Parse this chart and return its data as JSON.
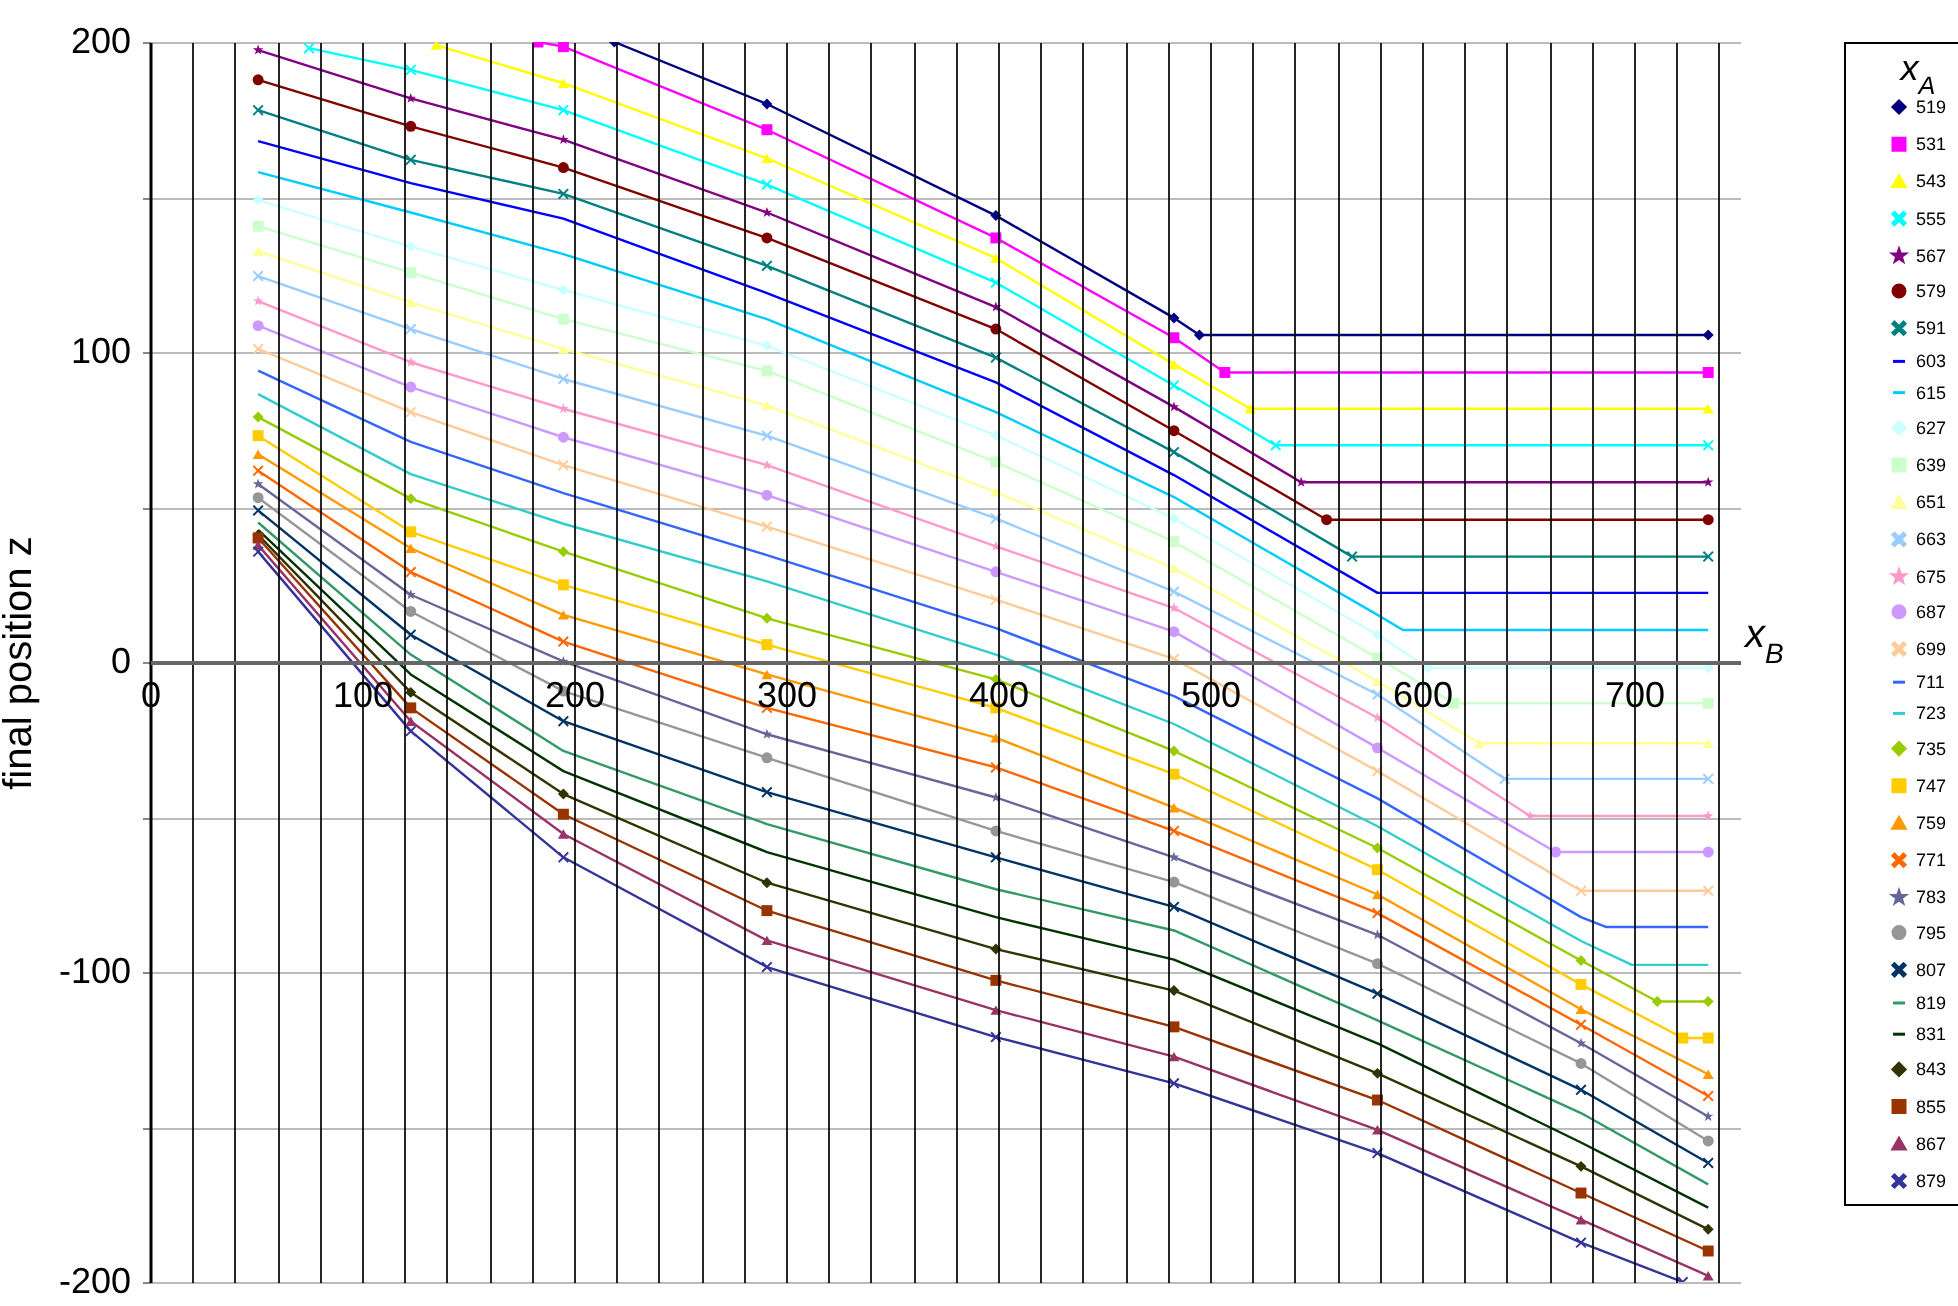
{
  "chart_data": {
    "type": "line",
    "xlabel": "x$_{B}$",
    "ylabel": "final position z",
    "legend_title": "x$_{A}$",
    "xlim": [
      0,
      750
    ],
    "xticks": [
      0,
      {
        "value": 20,
        "label": null
      },
      {
        "value": 40,
        "label": null
      },
      {
        "value": 60,
        "label": null
      },
      {
        "value": 80,
        "label": null
      },
      100,
      {
        "value": 120,
        "label": null
      },
      {
        "value": 140,
        "label": null
      },
      {
        "value": 160,
        "label": null
      },
      {
        "value": 180,
        "label": null
      },
      200,
      {
        "value": 220,
        "label": null
      },
      {
        "value": 240,
        "label": null
      },
      {
        "value": 260,
        "label": null
      },
      {
        "value": 280,
        "label": null
      },
      300,
      {
        "value": 320,
        "label": null
      },
      {
        "value": 340,
        "label": null
      },
      {
        "value": 360,
        "label": null
      },
      {
        "value": 380,
        "label": null
      },
      400,
      {
        "value": 420,
        "label": null
      },
      {
        "value": 440,
        "label": null
      },
      {
        "value": 460,
        "label": null
      },
      {
        "value": 480,
        "label": null
      },
      500,
      {
        "value": 520,
        "label": null
      },
      {
        "value": 540,
        "label": null
      },
      {
        "value": 560,
        "label": null
      },
      {
        "value": 580,
        "label": null
      },
      600,
      {
        "value": 620,
        "label": null
      },
      {
        "value": 640,
        "label": null
      },
      {
        "value": 660,
        "label": null
      },
      {
        "value": 680,
        "label": null
      },
      700,
      {
        "value": 720,
        "label": null
      },
      {
        "value": 740,
        "label": null
      }
    ],
    "ylim": [
      -200,
      200
    ],
    "yticks": [
      -200,
      {
        "value": -150,
        "label": null
      },
      -100,
      {
        "value": -50,
        "label": null
      },
      0,
      {
        "value": 50,
        "label": null
      },
      100,
      {
        "value": 150,
        "label": null
      },
      200
    ],
    "grid": true,
    "legend": "right",
    "series": [
      {
        "name": "519",
        "color": "#000080",
        "marker": "diamond",
        "x": [
          219,
          291,
          399,
          483,
          495,
          735
        ],
        "values": [
          200,
          180,
          144,
          111,
          105.5,
          105.5
        ]
      },
      {
        "name": "531",
        "color": "#ff00ff",
        "marker": "square",
        "x": [
          183,
          195,
          291,
          399,
          483,
          507,
          735
        ],
        "values": [
          200,
          198.5,
          171.7,
          136.8,
          104.6,
          93.4,
          93.4
        ]
      },
      {
        "name": "543",
        "color": "#ffff00",
        "marker": "triangle",
        "x": [
          135,
          195,
          291,
          399,
          483,
          519,
          735
        ],
        "values": [
          199,
          186.7,
          162.5,
          130.3,
          96,
          81.7,
          81.7
        ]
      },
      {
        "name": "555",
        "color": "#00ffff",
        "marker": "cross",
        "x": [
          75,
          123,
          195,
          291,
          399,
          483,
          531,
          735
        ],
        "values": [
          198,
          191,
          178,
          154,
          122.4,
          89.2,
          69.9,
          69.9
        ]
      },
      {
        "name": "567",
        "color": "#800080",
        "marker": "star",
        "x": [
          51,
          123,
          195,
          291,
          399,
          483,
          543,
          735
        ],
        "values": [
          197.4,
          181.8,
          168.5,
          145,
          114.5,
          82.3,
          58,
          58
        ]
      },
      {
        "name": "579",
        "color": "#800000",
        "marker": "circle",
        "x": [
          51,
          123,
          195,
          291,
          399,
          483,
          555,
          735
        ],
        "values": [
          187.8,
          172.8,
          159.5,
          136.8,
          107.4,
          74.6,
          45.9,
          45.9
        ]
      },
      {
        "name": "591",
        "color": "#008080",
        "marker": "cross",
        "x": [
          51,
          123,
          195,
          291,
          399,
          483,
          567,
          735
        ],
        "values": [
          178,
          162,
          151,
          127.8,
          98.2,
          67.7,
          34,
          34
        ]
      },
      {
        "name": "603",
        "color": "#0000ff",
        "marker": "none",
        "x": [
          51,
          123,
          195,
          291,
          399,
          483,
          579,
          735
        ],
        "values": [
          168,
          154.5,
          143,
          119,
          90.2,
          60.3,
          22.3,
          22.3
        ]
      },
      {
        "name": "615",
        "color": "#00ccff",
        "marker": "none",
        "x": [
          51,
          123,
          195,
          291,
          399,
          483,
          579,
          591,
          735
        ],
        "values": [
          158,
          145,
          131.6,
          110.6,
          80.6,
          53.2,
          15.2,
          10.3,
          10.3
        ]
      },
      {
        "name": "627",
        "color": "#ccffff",
        "marker": "diamond",
        "x": [
          51,
          123,
          195,
          291,
          399,
          483,
          579,
          603,
          735
        ],
        "values": [
          149,
          134,
          120,
          102,
          73.1,
          46.3,
          8.8,
          -1.9,
          -1.9
        ]
      },
      {
        "name": "639",
        "color": "#ccffcc",
        "marker": "square",
        "x": [
          51,
          123,
          195,
          291,
          399,
          483,
          579,
          615,
          735
        ],
        "values": [
          140.6,
          125.6,
          110.6,
          93.9,
          64.5,
          38.8,
          1.3,
          -13.3,
          -13.3
        ]
      },
      {
        "name": "651",
        "color": "#ffff99",
        "marker": "triangle",
        "x": [
          51,
          123,
          195,
          291,
          399,
          483,
          579,
          627,
          735
        ],
        "values": [
          132.5,
          116,
          101,
          82.8,
          54.9,
          30.2,
          -6.2,
          -26.2,
          -26.2
        ]
      },
      {
        "name": "663",
        "color": "#99ccff",
        "marker": "cross",
        "x": [
          51,
          123,
          195,
          291,
          399,
          483,
          579,
          639,
          735
        ],
        "values": [
          124.5,
          107.4,
          91.3,
          73,
          46.3,
          22.7,
          -10.5,
          -37.7,
          -37.7
        ]
      },
      {
        "name": "675",
        "color": "#ff99cc",
        "marker": "star",
        "x": [
          51,
          123,
          195,
          291,
          399,
          483,
          579,
          651,
          735
        ],
        "values": [
          116.4,
          96.7,
          81.7,
          63.5,
          37.3,
          17.4,
          -18,
          -49.7,
          -49.7
        ]
      },
      {
        "name": "687",
        "color": "#cc99ff",
        "marker": "circle",
        "x": [
          51,
          123,
          195,
          291,
          399,
          483,
          579,
          663,
          735
        ],
        "values": [
          108.5,
          88.7,
          72.5,
          53.8,
          29.1,
          9.8,
          -27.7,
          -61.3,
          -61.3
        ]
      },
      {
        "name": "699",
        "color": "#ffcc99",
        "marker": "cross",
        "x": [
          51,
          123,
          195,
          291,
          399,
          483,
          579,
          675,
          735
        ],
        "values": [
          101,
          80.6,
          63.5,
          43.7,
          20.1,
          1,
          -35.2,
          -73.8,
          -73.8
        ]
      },
      {
        "name": "711",
        "color": "#3366ff",
        "marker": "none",
        "x": [
          51,
          123,
          195,
          291,
          399,
          483,
          579,
          675,
          687,
          735
        ],
        "values": [
          94,
          71,
          54.5,
          34.5,
          10.9,
          -11,
          -44,
          -82.3,
          -85.5,
          -85.5
        ]
      },
      {
        "name": "723",
        "color": "#33cccc",
        "marker": "none",
        "x": [
          51,
          123,
          195,
          291,
          399,
          483,
          579,
          675,
          699,
          735
        ],
        "values": [
          86.4,
          60.6,
          44.6,
          26,
          2.4,
          -20,
          -53,
          -90,
          -97.7,
          -97.7
        ]
      },
      {
        "name": "735",
        "color": "#99cc00",
        "marker": "diamond",
        "x": [
          51,
          123,
          195,
          291,
          399,
          483,
          579,
          675,
          711,
          735
        ],
        "values": [
          79,
          52.7,
          35.6,
          14.1,
          -5.6,
          -28.7,
          -60,
          -96.3,
          -109.5,
          -109.5
        ]
      },
      {
        "name": "747",
        "color": "#ffcc00",
        "marker": "square",
        "x": [
          51,
          123,
          195,
          291,
          399,
          483,
          579,
          675,
          723,
          735
        ],
        "values": [
          73,
          42,
          24.9,
          5.6,
          -14.8,
          -36.2,
          -67,
          -104,
          -121.3,
          -121.3
        ]
      },
      {
        "name": "759",
        "color": "#ff9900",
        "marker": "triangle",
        "x": [
          51,
          123,
          195,
          291,
          399,
          483,
          579,
          675,
          735
        ],
        "values": [
          67,
          36.7,
          15.2,
          -4,
          -24.4,
          -47,
          -75,
          -112,
          -133
        ]
      },
      {
        "name": "771",
        "color": "#ff6600",
        "marker": "cross",
        "x": [
          51,
          123,
          195,
          291,
          399,
          483,
          579,
          675,
          735
        ],
        "values": [
          61.7,
          29,
          6.6,
          -14.8,
          -34,
          -54.5,
          -81,
          -117,
          -140
        ]
      },
      {
        "name": "783",
        "color": "#666699",
        "marker": "star",
        "x": [
          51,
          123,
          195,
          291,
          399,
          483,
          579,
          675,
          735
        ],
        "values": [
          57.4,
          21.7,
          0.2,
          -23.3,
          -43.7,
          -63,
          -88,
          -123,
          -146.6
        ]
      },
      {
        "name": "795",
        "color": "#969696",
        "marker": "circle",
        "x": [
          51,
          123,
          195,
          291,
          399,
          483,
          579,
          675,
          735
        ],
        "values": [
          53,
          16.3,
          -9.4,
          -30.9,
          -54.5,
          -71,
          -97.3,
          -129.5,
          -154.5
        ]
      },
      {
        "name": "807",
        "color": "#003366",
        "marker": "cross",
        "x": [
          51,
          123,
          195,
          291,
          399,
          483,
          579,
          675,
          735
        ],
        "values": [
          48.9,
          8.8,
          -19.1,
          -42,
          -63,
          -79,
          -107,
          -138,
          -161.6
        ]
      },
      {
        "name": "819",
        "color": "#339966",
        "marker": "none",
        "x": [
          51,
          123,
          195,
          291,
          399,
          483,
          579,
          675,
          735
        ],
        "values": [
          45,
          2.4,
          -28.7,
          -52.3,
          -73.3,
          -86.6,
          -115.6,
          -145.5,
          -168.5
        ]
      },
      {
        "name": "831",
        "color": "#003300",
        "marker": "none",
        "x": [
          51,
          123,
          195,
          291,
          399,
          483,
          579,
          675,
          735
        ],
        "values": [
          42.6,
          -4,
          -35.2,
          -61.3,
          -82.3,
          -96,
          -123,
          -155,
          -176
        ]
      },
      {
        "name": "843",
        "color": "#333300",
        "marker": "diamond",
        "x": [
          51,
          123,
          195,
          291,
          399,
          483,
          579,
          675,
          735
        ],
        "values": [
          41,
          -9.8,
          -42.6,
          -71.2,
          -92.6,
          -106,
          -132.7,
          -162.7,
          -183
        ]
      },
      {
        "name": "855",
        "color": "#993300",
        "marker": "square",
        "x": [
          51,
          123,
          195,
          291,
          399,
          483,
          579,
          675,
          735
        ],
        "values": [
          40,
          -14.8,
          -49.1,
          -80.2,
          -102.7,
          -117.7,
          -141.3,
          -171.3,
          -190
        ]
      },
      {
        "name": "867",
        "color": "#993366",
        "marker": "triangle",
        "x": [
          51,
          123,
          195,
          291,
          399,
          483,
          579,
          675,
          735
        ],
        "values": [
          37.7,
          -19.1,
          -55.5,
          -89.8,
          -112.3,
          -127.3,
          -150.9,
          -179.9,
          -198
        ]
      },
      {
        "name": "879",
        "color": "#333399",
        "marker": "cross",
        "x": [
          51,
          123,
          195,
          291,
          399,
          483,
          579,
          675,
          723
        ],
        "values": [
          35.6,
          -22.3,
          -63,
          -98.4,
          -121,
          -135.9,
          -158.4,
          -187.3,
          -200
        ]
      }
    ]
  }
}
